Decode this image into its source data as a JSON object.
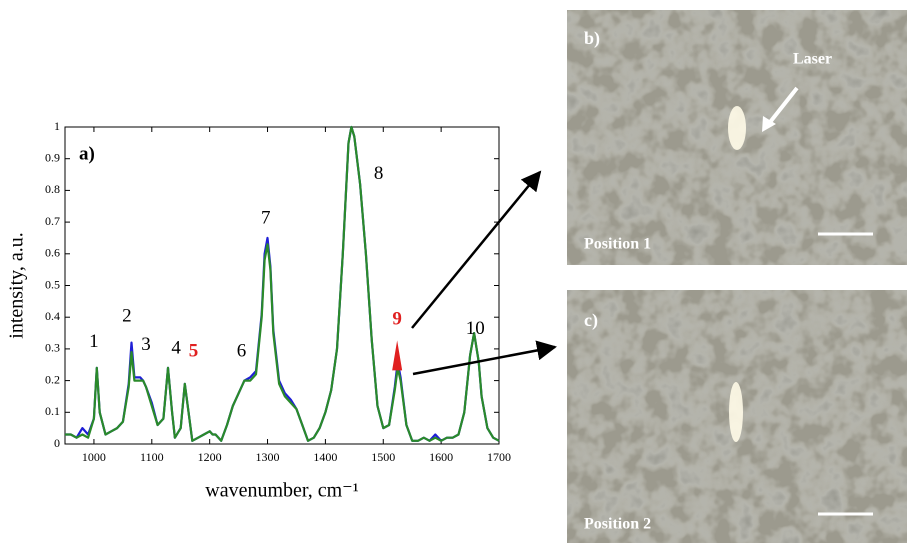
{
  "chart_data": {
    "type": "line",
    "label": "a)",
    "ylabel": "intensity, a.u.",
    "xlabel": "wavenumber, cm⁻¹",
    "x": [
      950,
      960,
      970,
      980,
      990,
      1000,
      1005,
      1010,
      1020,
      1030,
      1040,
      1050,
      1060,
      1065,
      1070,
      1080,
      1085,
      1090,
      1100,
      1110,
      1120,
      1128,
      1135,
      1140,
      1150,
      1157,
      1165,
      1170,
      1180,
      1190,
      1200,
      1205,
      1210,
      1220,
      1230,
      1240,
      1250,
      1260,
      1270,
      1280,
      1290,
      1295,
      1300,
      1305,
      1310,
      1320,
      1330,
      1340,
      1350,
      1360,
      1370,
      1380,
      1390,
      1400,
      1410,
      1420,
      1430,
      1440,
      1445,
      1450,
      1460,
      1470,
      1480,
      1490,
      1500,
      1510,
      1520,
      1525,
      1530,
      1540,
      1550,
      1560,
      1570,
      1580,
      1590,
      1600,
      1610,
      1620,
      1630,
      1640,
      1650,
      1657,
      1665,
      1670,
      1680,
      1690,
      1700
    ],
    "series": [
      {
        "color": "#1f1fd6",
        "values": [
          0.03,
          0.03,
          0.02,
          0.05,
          0.03,
          0.08,
          0.24,
          0.1,
          0.03,
          0.04,
          0.05,
          0.07,
          0.19,
          0.32,
          0.21,
          0.21,
          0.2,
          0.18,
          0.13,
          0.06,
          0.08,
          0.24,
          0.1,
          0.02,
          0.05,
          0.19,
          0.08,
          0.01,
          0.02,
          0.03,
          0.04,
          0.03,
          0.03,
          0.01,
          0.06,
          0.12,
          0.16,
          0.2,
          0.21,
          0.23,
          0.41,
          0.6,
          0.65,
          0.56,
          0.36,
          0.2,
          0.16,
          0.14,
          0.11,
          0.06,
          0.01,
          0.02,
          0.05,
          0.1,
          0.17,
          0.3,
          0.6,
          0.95,
          1.0,
          0.97,
          0.82,
          0.6,
          0.33,
          0.12,
          0.05,
          0.06,
          0.18,
          0.26,
          0.21,
          0.06,
          0.01,
          0.01,
          0.02,
          0.01,
          0.03,
          0.01,
          0.02,
          0.02,
          0.03,
          0.1,
          0.28,
          0.35,
          0.26,
          0.15,
          0.05,
          0.02,
          0.01
        ]
      },
      {
        "color": "#2a8a2a",
        "values": [
          0.03,
          0.03,
          0.02,
          0.03,
          0.02,
          0.08,
          0.24,
          0.1,
          0.03,
          0.04,
          0.05,
          0.07,
          0.18,
          0.29,
          0.2,
          0.2,
          0.2,
          0.18,
          0.12,
          0.06,
          0.08,
          0.24,
          0.1,
          0.02,
          0.05,
          0.19,
          0.08,
          0.01,
          0.02,
          0.03,
          0.04,
          0.03,
          0.03,
          0.01,
          0.06,
          0.12,
          0.16,
          0.2,
          0.2,
          0.22,
          0.4,
          0.58,
          0.63,
          0.55,
          0.35,
          0.19,
          0.15,
          0.13,
          0.11,
          0.06,
          0.01,
          0.02,
          0.05,
          0.1,
          0.17,
          0.3,
          0.6,
          0.95,
          1.0,
          0.97,
          0.82,
          0.6,
          0.33,
          0.12,
          0.05,
          0.06,
          0.17,
          0.24,
          0.2,
          0.06,
          0.01,
          0.01,
          0.02,
          0.01,
          0.02,
          0.01,
          0.02,
          0.02,
          0.03,
          0.1,
          0.28,
          0.35,
          0.26,
          0.15,
          0.05,
          0.02,
          0.01
        ]
      }
    ],
    "xlim": [
      950,
      1700
    ],
    "ylim": [
      0,
      1
    ],
    "xticks": [
      1000,
      1100,
      1200,
      1300,
      1400,
      1500,
      1600,
      1700
    ],
    "yticks": [
      0,
      0.1,
      0.2,
      0.3,
      0.4,
      0.5,
      0.6,
      0.7,
      0.8,
      0.9,
      1
    ],
    "annotations": [
      {
        "text": "1",
        "x": 1000,
        "y": 0.32,
        "color": "#000000"
      },
      {
        "text": "2",
        "x": 1057,
        "y": 0.4,
        "color": "#000000"
      },
      {
        "text": "3",
        "x": 1090,
        "y": 0.31,
        "color": "#000000"
      },
      {
        "text": "4",
        "x": 1142,
        "y": 0.3,
        "color": "#000000"
      },
      {
        "text": "5",
        "x": 1172,
        "y": 0.29,
        "color": "#e02020"
      },
      {
        "text": "6",
        "x": 1255,
        "y": 0.29,
        "color": "#000000"
      },
      {
        "text": "7",
        "x": 1297,
        "y": 0.71,
        "color": "#000000"
      },
      {
        "text": "8",
        "x": 1492,
        "y": 0.85,
        "color": "#000000"
      },
      {
        "text": "9",
        "x": 1524,
        "y": 0.39,
        "color": "#e02020"
      },
      {
        "text": "10",
        "x": 1659,
        "y": 0.36,
        "color": "#000000"
      }
    ]
  },
  "panels": [
    {
      "label": "b)",
      "annotation": "Laser",
      "caption": "Position 1"
    },
    {
      "label": "c)",
      "caption": "Position 2"
    }
  ]
}
